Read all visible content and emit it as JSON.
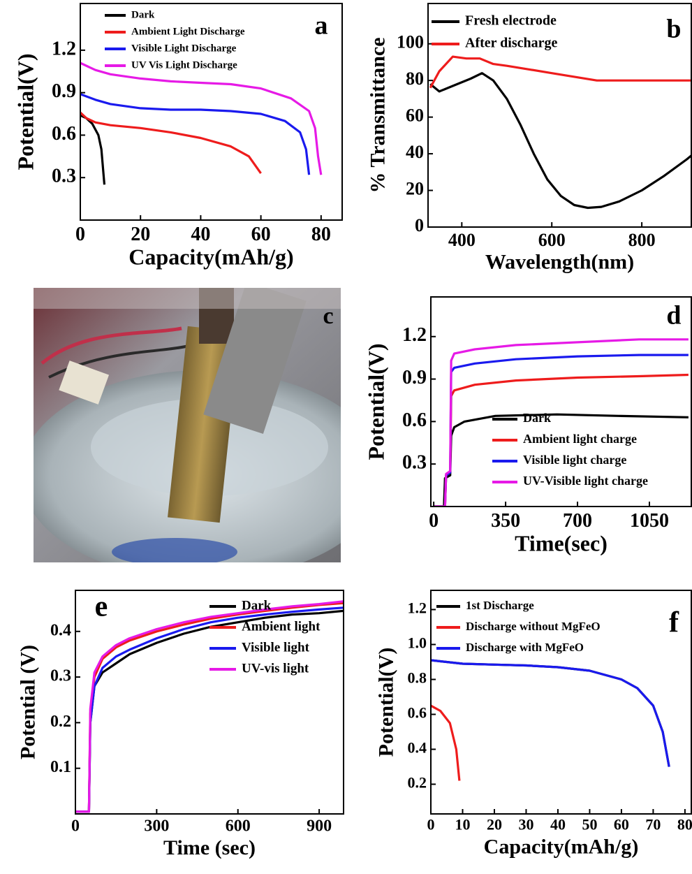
{
  "chart_data": [
    {
      "type": "line",
      "label": "a",
      "x_label": "Capacity(mAh/g)",
      "y_label": "Potential(V)",
      "xlim": [
        0,
        87
      ],
      "ylim": [
        0,
        1.53
      ],
      "xticks": [
        0,
        20,
        40,
        60,
        80
      ],
      "yticks": [
        0.3,
        0.6,
        0.9,
        1.2
      ],
      "legend": "upper left",
      "series": [
        {
          "name": "Dark",
          "color": "#000000",
          "x": [
            0,
            2,
            4,
            6,
            7,
            8
          ],
          "values": [
            0.74,
            0.72,
            0.68,
            0.6,
            0.5,
            0.25
          ]
        },
        {
          "name": "Ambient Light Discharge",
          "color": "#ee1c1c",
          "x": [
            0,
            2,
            5,
            10,
            20,
            30,
            40,
            50,
            56,
            60
          ],
          "values": [
            0.76,
            0.72,
            0.69,
            0.67,
            0.65,
            0.62,
            0.58,
            0.52,
            0.45,
            0.33
          ]
        },
        {
          "name": "Visible Light Discharge",
          "color": "#1a1aee",
          "x": [
            0,
            5,
            10,
            20,
            30,
            40,
            50,
            60,
            68,
            73,
            75,
            76
          ],
          "values": [
            0.89,
            0.85,
            0.82,
            0.79,
            0.78,
            0.78,
            0.77,
            0.75,
            0.7,
            0.62,
            0.5,
            0.32
          ]
        },
        {
          "name": "UV Vis Light Discharge",
          "color": "#e61ae6",
          "x": [
            0,
            5,
            10,
            20,
            30,
            40,
            50,
            60,
            70,
            76,
            78,
            79,
            80
          ],
          "values": [
            1.11,
            1.06,
            1.03,
            1.0,
            0.98,
            0.97,
            0.96,
            0.93,
            0.86,
            0.77,
            0.65,
            0.45,
            0.32
          ]
        }
      ]
    },
    {
      "type": "line",
      "label": "b",
      "x_label": "Wavelength(nm)",
      "y_label": "% Transmittance",
      "xlim": [
        325,
        910
      ],
      "ylim": [
        0,
        122
      ],
      "xticks": [
        400,
        600,
        800
      ],
      "yticks": [
        0,
        20,
        40,
        60,
        80,
        100
      ],
      "legend": "upper left",
      "series": [
        {
          "name": "Fresh electrode",
          "color": "#000000",
          "x": [
            330,
            350,
            380,
            420,
            445,
            470,
            500,
            530,
            560,
            590,
            620,
            650,
            680,
            710,
            750,
            800,
            850,
            900,
            910
          ],
          "values": [
            78,
            74,
            77,
            81,
            84,
            80,
            70,
            56,
            40,
            26,
            17,
            12,
            10.5,
            11,
            14,
            20,
            28,
            37,
            39
          ]
        },
        {
          "name": "After discharge",
          "color": "#ee1c1c",
          "x": [
            330,
            350,
            380,
            410,
            440,
            470,
            500,
            550,
            600,
            650,
            700,
            750,
            800,
            850,
            910
          ],
          "values": [
            76,
            85,
            93,
            92,
            92,
            89,
            88,
            86,
            84,
            82,
            80,
            80,
            80,
            80,
            80
          ]
        }
      ]
    },
    {
      "type": "line",
      "label": "d",
      "x_label": "Time(sec)",
      "y_label": "Potential(V)",
      "xlim": [
        -14,
        1254
      ],
      "ylim": [
        0,
        1.48
      ],
      "xticks": [
        0,
        350,
        700,
        1050
      ],
      "yticks": [
        0.3,
        0.6,
        0.9,
        1.2
      ],
      "legend": "lower right",
      "series": [
        {
          "name": "Dark",
          "color": "#000000",
          "x": [
            0,
            50,
            55,
            80,
            85,
            100,
            150,
            300,
            600,
            900,
            1240
          ],
          "values": [
            0,
            0,
            0.2,
            0.22,
            0.5,
            0.56,
            0.6,
            0.64,
            0.65,
            0.64,
            0.63
          ]
        },
        {
          "name": "Ambient light charge",
          "color": "#ee1c1c",
          "x": [
            0,
            55,
            60,
            80,
            85,
            100,
            200,
            400,
            700,
            1000,
            1240
          ],
          "values": [
            0,
            0,
            0.22,
            0.24,
            0.78,
            0.82,
            0.86,
            0.89,
            0.91,
            0.92,
            0.93
          ]
        },
        {
          "name": "Visible light charge",
          "color": "#1a1aee",
          "x": [
            0,
            55,
            60,
            80,
            85,
            100,
            200,
            400,
            700,
            1000,
            1240
          ],
          "values": [
            0,
            0,
            0.22,
            0.24,
            0.95,
            0.98,
            1.01,
            1.04,
            1.06,
            1.07,
            1.07
          ]
        },
        {
          "name": "UV-Visible light charge",
          "color": "#e61ae6",
          "x": [
            0,
            55,
            60,
            80,
            85,
            100,
            200,
            400,
            700,
            1000,
            1240
          ],
          "values": [
            0,
            0,
            0.23,
            0.25,
            1.03,
            1.08,
            1.11,
            1.14,
            1.16,
            1.18,
            1.18
          ]
        }
      ]
    },
    {
      "type": "line",
      "label": "e",
      "x_label": "Time (sec)",
      "y_label": "Potential (V)",
      "xlim": [
        0,
        990
      ],
      "ylim": [
        0,
        0.49
      ],
      "xticks": [
        0,
        300,
        600,
        900
      ],
      "yticks": [
        0.1,
        0.2,
        0.3,
        0.4
      ],
      "legend": "upper right",
      "series": [
        {
          "name": "Dark",
          "color": "#000000",
          "x": [
            0,
            50,
            55,
            70,
            100,
            150,
            200,
            300,
            400,
            500,
            600,
            700,
            800,
            900,
            990
          ],
          "values": [
            0.005,
            0.005,
            0.2,
            0.28,
            0.31,
            0.33,
            0.35,
            0.375,
            0.395,
            0.41,
            0.42,
            0.43,
            0.437,
            0.44,
            0.445
          ]
        },
        {
          "name": "Ambient light",
          "color": "#ee1c1c",
          "x": [
            0,
            50,
            55,
            70,
            100,
            150,
            200,
            300,
            400,
            500,
            600,
            700,
            800,
            900,
            990
          ],
          "values": [
            0.005,
            0.005,
            0.22,
            0.3,
            0.34,
            0.365,
            0.38,
            0.4,
            0.415,
            0.428,
            0.437,
            0.445,
            0.452,
            0.458,
            0.462
          ]
        },
        {
          "name": "Visible light",
          "color": "#1a1aee",
          "x": [
            0,
            50,
            55,
            70,
            100,
            150,
            200,
            300,
            400,
            500,
            600,
            700,
            800,
            900,
            990
          ],
          "values": [
            0.005,
            0.005,
            0.2,
            0.28,
            0.32,
            0.345,
            0.36,
            0.385,
            0.405,
            0.42,
            0.43,
            0.437,
            0.443,
            0.448,
            0.452
          ]
        },
        {
          "name": "UV-vis light",
          "color": "#e61ae6",
          "x": [
            0,
            50,
            55,
            70,
            100,
            150,
            200,
            300,
            400,
            500,
            600,
            700,
            800,
            900,
            990
          ],
          "values": [
            0.005,
            0.005,
            0.23,
            0.31,
            0.345,
            0.37,
            0.385,
            0.405,
            0.42,
            0.432,
            0.44,
            0.448,
            0.455,
            0.46,
            0.466
          ]
        }
      ]
    },
    {
      "type": "line",
      "label": "f",
      "x_label": "Capacity(mAh/g)",
      "y_label": "Potential(V)",
      "xlim": [
        0,
        82
      ],
      "ylim": [
        0.03,
        1.31
      ],
      "xticks": [
        0,
        10,
        20,
        30,
        40,
        50,
        60,
        70,
        80
      ],
      "yticks": [
        0.2,
        0.4,
        0.6,
        0.8,
        {
          "value": 1,
          "label": "1.0"
        },
        1.2
      ],
      "legend": "upper left",
      "series": [
        {
          "name": "1st Discharge",
          "color": "#000000",
          "x": [
            0,
            10,
            20,
            30,
            40,
            50,
            60,
            65,
            70,
            73,
            75
          ],
          "values": [
            0.91,
            0.89,
            0.885,
            0.88,
            0.87,
            0.85,
            0.8,
            0.75,
            0.65,
            0.5,
            0.3
          ]
        },
        {
          "name": "Discharge without MgFeO",
          "color": "#ee1c1c",
          "x": [
            0,
            3,
            6,
            8,
            9
          ],
          "values": [
            0.65,
            0.62,
            0.55,
            0.4,
            0.22
          ]
        },
        {
          "name": "Discharge with MgFeO",
          "color": "#1a1aee",
          "x": [
            0,
            10,
            20,
            30,
            40,
            50,
            60,
            65,
            70,
            73,
            75
          ],
          "values": [
            0.91,
            0.89,
            0.885,
            0.88,
            0.87,
            0.85,
            0.8,
            0.75,
            0.65,
            0.5,
            0.3
          ]
        }
      ]
    }
  ],
  "photo": {
    "label": "c"
  }
}
